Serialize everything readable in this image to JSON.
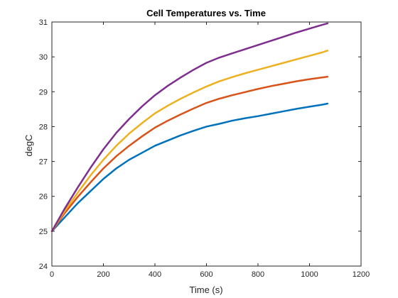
{
  "chart_data": {
    "type": "line",
    "title": "Cell Temperatures vs. Time",
    "xlabel": "Time (s)",
    "ylabel": "degC",
    "xlim": [
      0,
      1200
    ],
    "ylim": [
      24,
      31
    ],
    "xticks": [
      0,
      200,
      400,
      600,
      800,
      1000,
      1200
    ],
    "yticks": [
      24,
      25,
      26,
      27,
      28,
      29,
      30,
      31
    ],
    "grid": false,
    "legend": "none",
    "series": [
      {
        "color": "#0072BD",
        "x": [
          0,
          50,
          100,
          150,
          200,
          250,
          300,
          350,
          400,
          450,
          500,
          550,
          600,
          650,
          700,
          750,
          800,
          850,
          900,
          950,
          1000,
          1050,
          1070
        ],
        "y": [
          25.0,
          25.4,
          25.8,
          26.15,
          26.5,
          26.8,
          27.05,
          27.25,
          27.45,
          27.6,
          27.75,
          27.88,
          28.0,
          28.08,
          28.17,
          28.24,
          28.3,
          28.37,
          28.44,
          28.51,
          28.57,
          28.63,
          28.66
        ]
      },
      {
        "color": "#D95319",
        "x": [
          0,
          50,
          100,
          150,
          200,
          250,
          300,
          350,
          400,
          450,
          500,
          550,
          600,
          650,
          700,
          750,
          800,
          850,
          900,
          950,
          1000,
          1050,
          1070
        ],
        "y": [
          25.0,
          25.52,
          25.98,
          26.4,
          26.8,
          27.15,
          27.45,
          27.72,
          27.97,
          28.17,
          28.35,
          28.52,
          28.68,
          28.8,
          28.9,
          28.99,
          29.08,
          29.16,
          29.23,
          29.3,
          29.36,
          29.41,
          29.43
        ]
      },
      {
        "color": "#EDB120",
        "x": [
          0,
          50,
          100,
          150,
          200,
          250,
          300,
          350,
          400,
          450,
          500,
          550,
          600,
          650,
          700,
          750,
          800,
          850,
          900,
          950,
          1000,
          1050,
          1070
        ],
        "y": [
          25.0,
          25.58,
          26.1,
          26.6,
          27.05,
          27.45,
          27.8,
          28.1,
          28.38,
          28.6,
          28.8,
          28.98,
          29.15,
          29.3,
          29.42,
          29.53,
          29.63,
          29.73,
          29.83,
          29.93,
          30.03,
          30.13,
          30.18
        ]
      },
      {
        "color": "#7E2F8E",
        "x": [
          0,
          50,
          100,
          150,
          200,
          250,
          300,
          350,
          400,
          450,
          500,
          550,
          600,
          650,
          700,
          750,
          800,
          850,
          900,
          950,
          1000,
          1050,
          1070
        ],
        "y": [
          25.0,
          25.65,
          26.25,
          26.82,
          27.35,
          27.82,
          28.22,
          28.58,
          28.9,
          29.17,
          29.41,
          29.63,
          29.83,
          29.98,
          30.1,
          30.22,
          30.34,
          30.46,
          30.58,
          30.7,
          30.81,
          30.92,
          30.96
        ]
      }
    ]
  }
}
